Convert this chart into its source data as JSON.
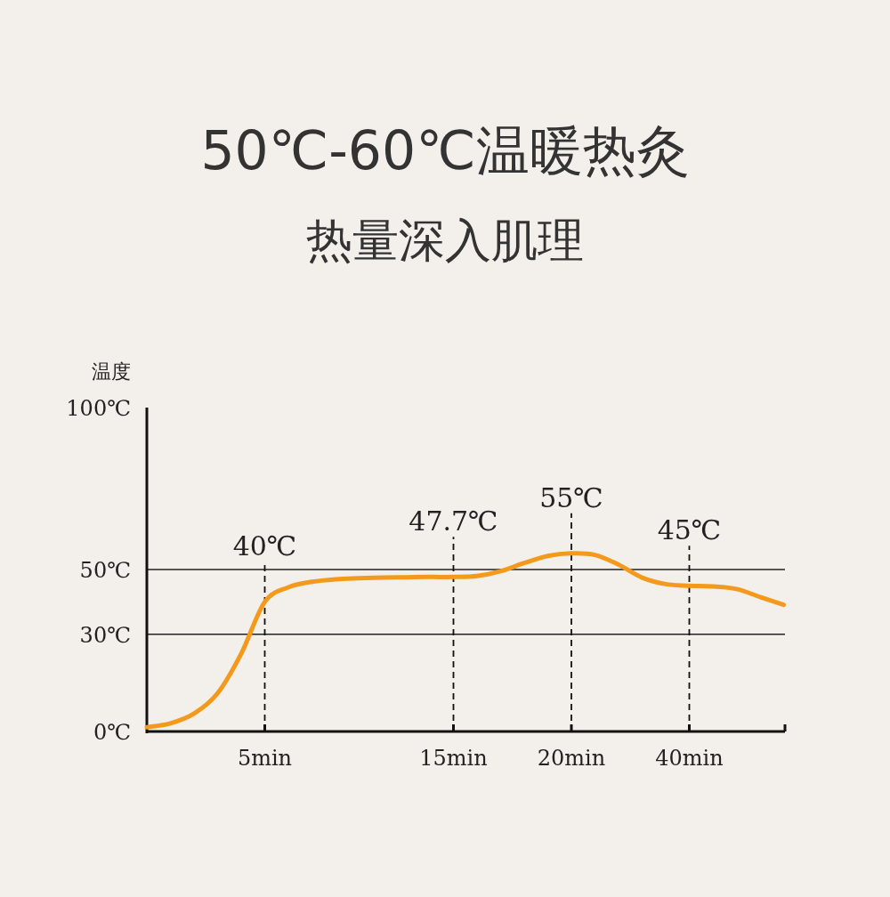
{
  "chart_data": {
    "type": "line",
    "title": "50℃-60℃温暖热灸",
    "subtitle": "热量深入肌理",
    "ylabel": "温度",
    "categories": [
      null,
      null,
      null,
      null,
      null,
      "5min",
      null,
      null,
      null,
      null,
      null,
      null,
      null,
      "15min",
      null,
      null,
      null,
      null,
      "20min",
      null,
      null,
      null,
      null,
      "40min",
      null,
      null,
      null,
      null
    ],
    "series": [
      {
        "color": "#f39a1c",
        "values": [
          1.3,
          2.5,
          5.5,
          11.8,
          24,
          40,
          44.5,
          46.2,
          47,
          47.3,
          47.5,
          47.6,
          47.7,
          47.7,
          48,
          49.5,
          52,
          54.2,
          55,
          54.5,
          51.5,
          47.5,
          45.5,
          45,
          44.8,
          44,
          41.5,
          39.1
        ],
        "value_labels": [
          null,
          null,
          null,
          null,
          null,
          "40℃",
          null,
          null,
          null,
          null,
          null,
          null,
          null,
          "47.7℃",
          null,
          null,
          null,
          null,
          "55℃",
          null,
          null,
          null,
          null,
          "45℃",
          null,
          null,
          null,
          null
        ]
      }
    ],
    "ylim": [
      0,
      100
    ],
    "yticks": [
      {
        "value": 0,
        "label": "0℃"
      },
      {
        "value": 30,
        "label": "30℃"
      },
      {
        "value": 50,
        "label": "50℃"
      },
      {
        "value": 100,
        "label": "100℃"
      }
    ],
    "grid": "y",
    "line_style": "solid",
    "marker": "none",
    "ref_lines": [
      {
        "axis": "x",
        "value": "5min",
        "line_style": "dashed"
      },
      {
        "axis": "x",
        "value": "15min",
        "line_style": "dashed"
      },
      {
        "axis": "x",
        "value": "20min",
        "line_style": "dashed"
      },
      {
        "axis": "x",
        "value": "40min",
        "line_style": "dashed"
      }
    ]
  }
}
